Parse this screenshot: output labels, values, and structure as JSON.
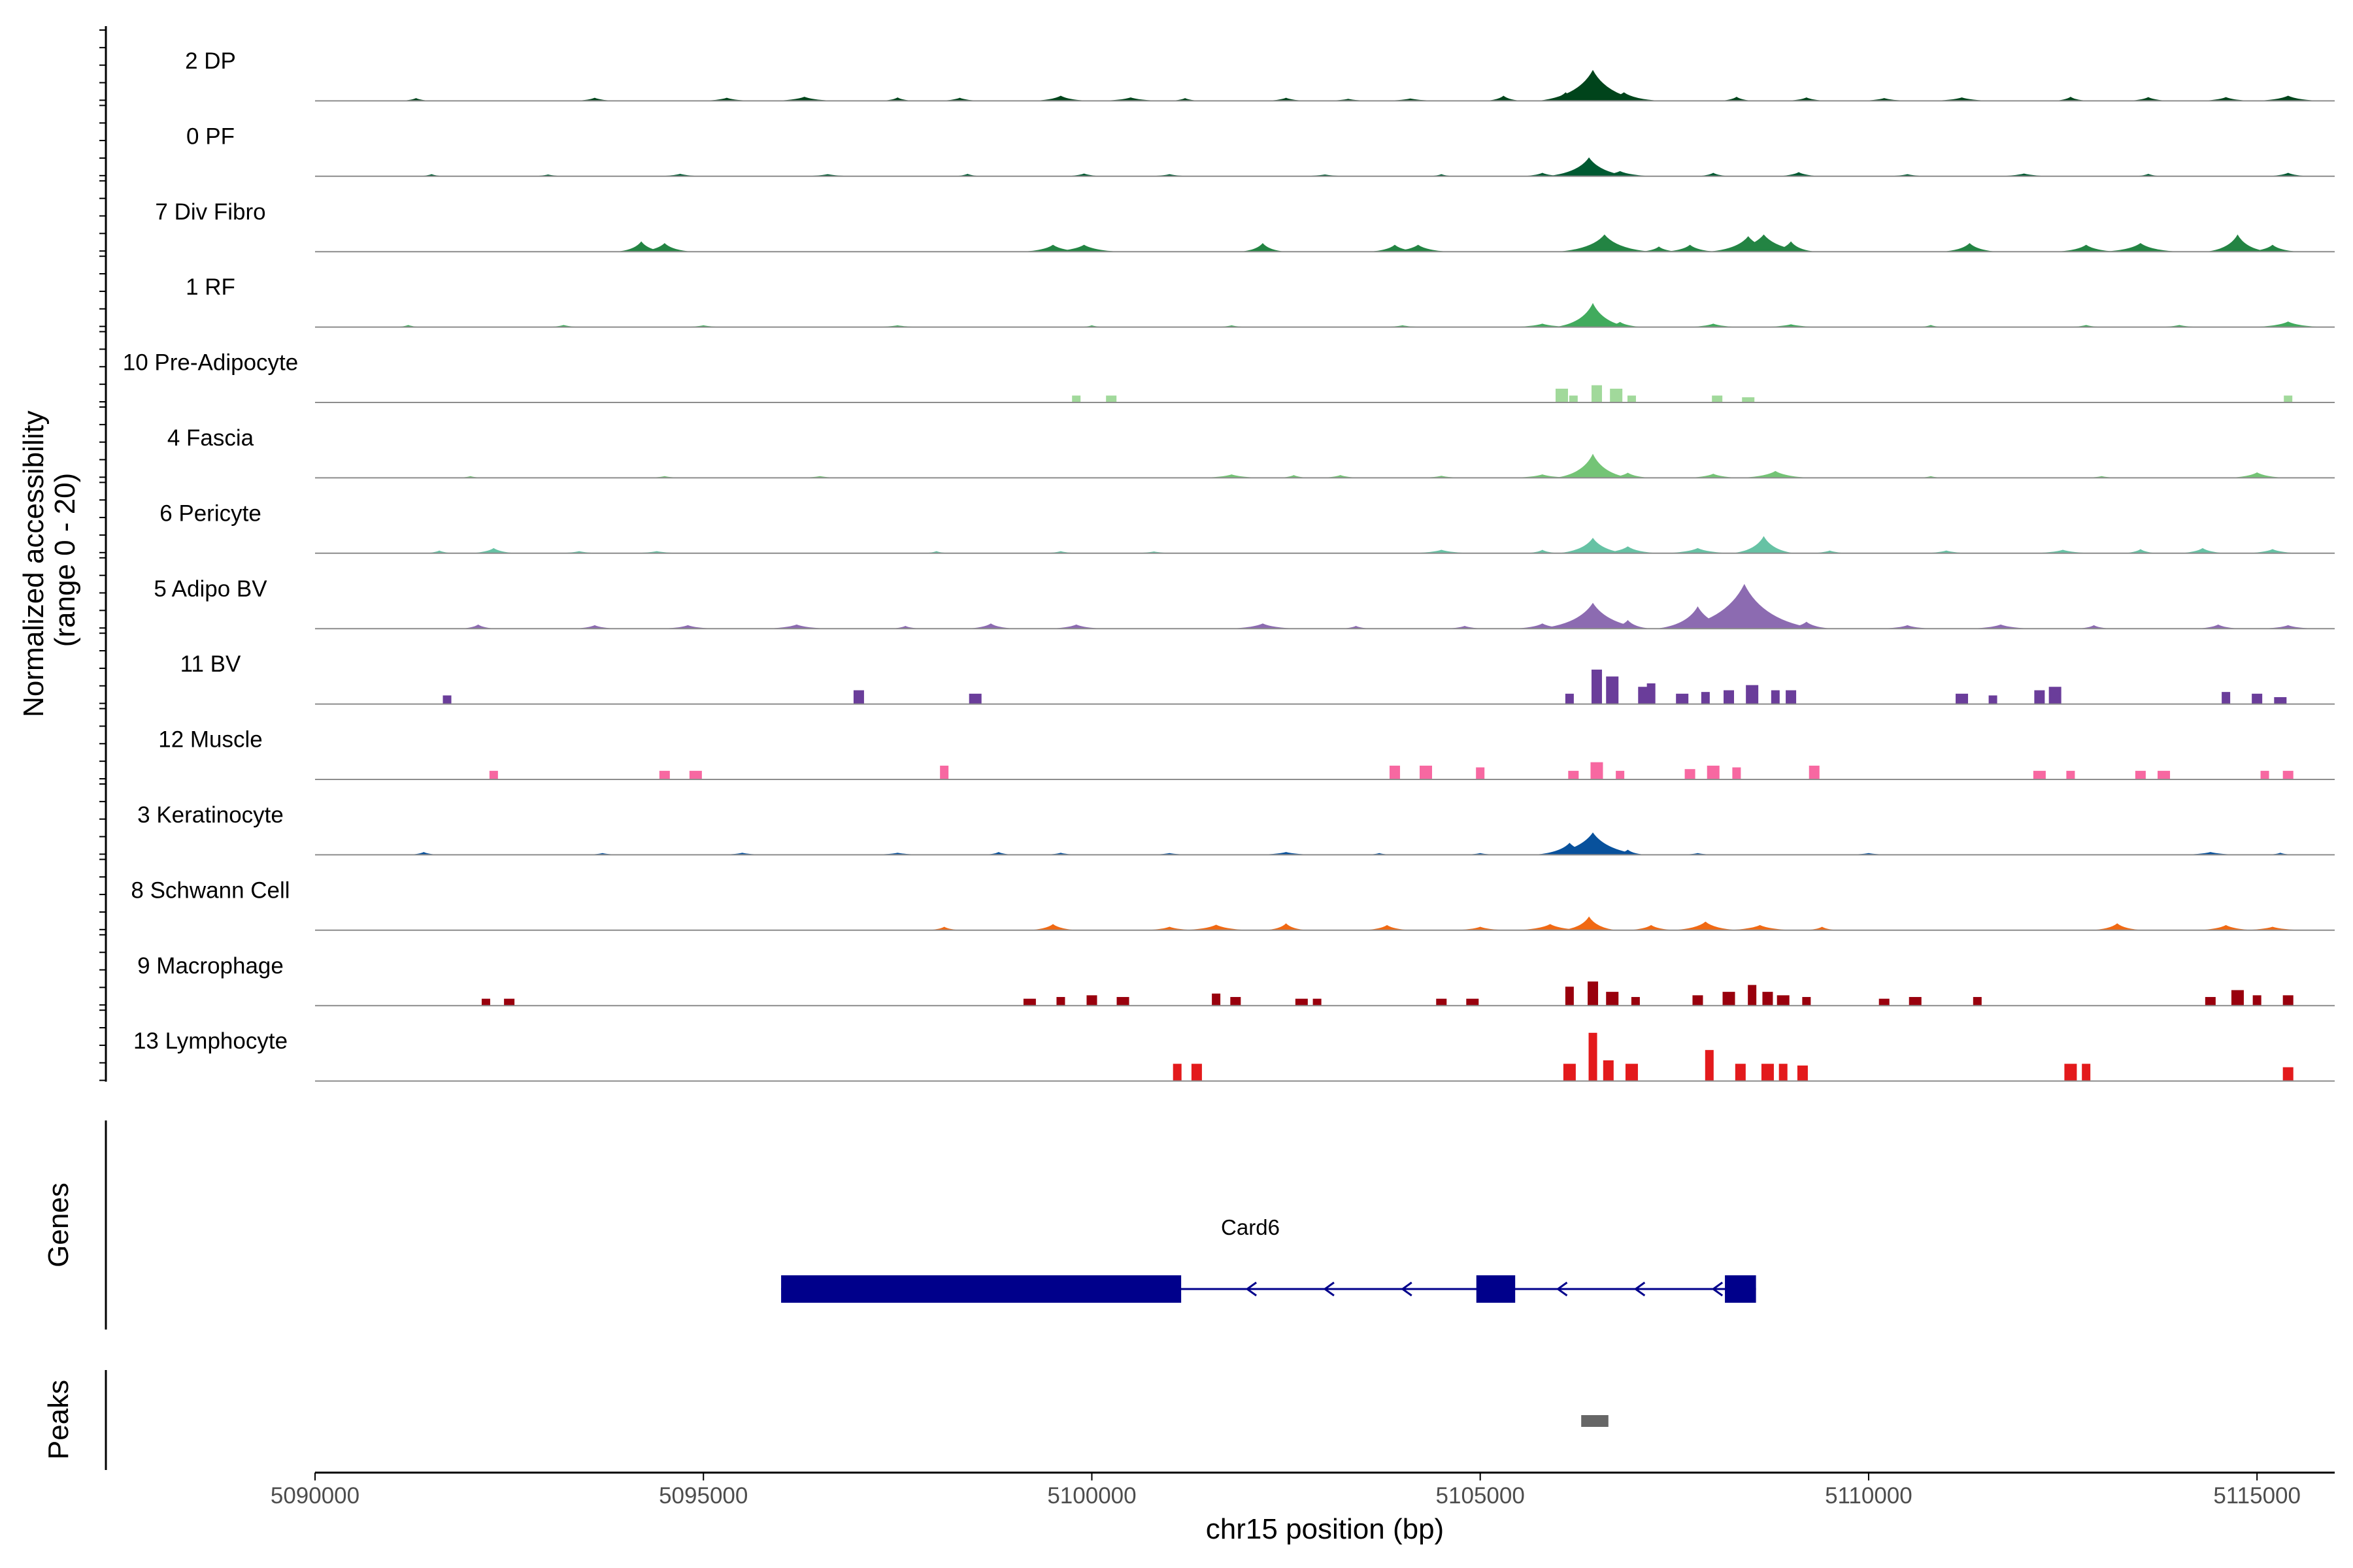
{
  "chart_data": {
    "type": "area",
    "genome_region": {
      "chromosome": "chr15",
      "start": 5090000,
      "end": 5116000
    },
    "y_axis": {
      "title_line1": "Normalized accessibility",
      "title_line2": "(range 0 - 20)",
      "ylim": [
        0,
        20
      ]
    },
    "x_axis": {
      "title": "chr15 position (bp)",
      "ticks": [
        5090000,
        5095000,
        5100000,
        5105000,
        5110000,
        5115000
      ],
      "tick_labels": [
        "5090000",
        "5095000",
        "5100000",
        "5105000",
        "5110000",
        "5115000"
      ]
    },
    "tracks": [
      {
        "name": "2 DP",
        "color": "#00441b",
        "style": "smooth",
        "peaks": [
          [
            5091300,
            0.8
          ],
          [
            5093600,
            0.9
          ],
          [
            5095300,
            0.9
          ],
          [
            5096300,
            1.2
          ],
          [
            5097500,
            1.0
          ],
          [
            5098300,
            0.9
          ],
          [
            5099600,
            1.5
          ],
          [
            5100500,
            1.0
          ],
          [
            5101200,
            0.8
          ],
          [
            5102500,
            0.9
          ],
          [
            5103300,
            0.6
          ],
          [
            5104100,
            0.7
          ],
          [
            5105300,
            1.5
          ],
          [
            5106100,
            2.5
          ],
          [
            5106450,
            9.0
          ],
          [
            5106850,
            2.5
          ],
          [
            5108300,
            1.2
          ],
          [
            5109200,
            1.0
          ],
          [
            5110200,
            0.8
          ],
          [
            5111200,
            1.0
          ],
          [
            5112600,
            1.2
          ],
          [
            5113600,
            1.1
          ],
          [
            5114600,
            1.1
          ],
          [
            5115400,
            1.5
          ]
        ]
      },
      {
        "name": "0 PF",
        "color": "#005a32",
        "style": "smooth",
        "peaks": [
          [
            5091500,
            0.6
          ],
          [
            5093000,
            0.5
          ],
          [
            5094700,
            0.7
          ],
          [
            5096600,
            0.6
          ],
          [
            5098400,
            0.7
          ],
          [
            5099900,
            0.8
          ],
          [
            5101000,
            0.6
          ],
          [
            5103000,
            0.5
          ],
          [
            5104500,
            0.6
          ],
          [
            5105800,
            1.0
          ],
          [
            5106400,
            5.5
          ],
          [
            5106800,
            1.5
          ],
          [
            5108000,
            1.0
          ],
          [
            5109100,
            1.2
          ],
          [
            5110500,
            0.6
          ],
          [
            5112000,
            0.8
          ],
          [
            5113600,
            0.7
          ],
          [
            5115400,
            1.0
          ]
        ]
      },
      {
        "name": "7 Div Fibro",
        "color": "#238443",
        "style": "smooth",
        "peaks": [
          [
            5094200,
            3.0
          ],
          [
            5094500,
            2.5
          ],
          [
            5099500,
            2.0
          ],
          [
            5099900,
            2.0
          ],
          [
            5102200,
            2.5
          ],
          [
            5103900,
            2.0
          ],
          [
            5104200,
            2.0
          ],
          [
            5106600,
            5.0
          ],
          [
            5107300,
            1.5
          ],
          [
            5107700,
            2.0
          ],
          [
            5108450,
            4.5
          ],
          [
            5108650,
            5.0
          ],
          [
            5109000,
            3.0
          ],
          [
            5111300,
            2.5
          ],
          [
            5112800,
            2.0
          ],
          [
            5113500,
            2.5
          ],
          [
            5114750,
            5.0
          ],
          [
            5115200,
            2.0
          ]
        ]
      },
      {
        "name": "1 RF",
        "color": "#41ab5d",
        "style": "smooth",
        "peaks": [
          [
            5091200,
            0.6
          ],
          [
            5093200,
            0.6
          ],
          [
            5095000,
            0.5
          ],
          [
            5097500,
            0.5
          ],
          [
            5100000,
            0.5
          ],
          [
            5101800,
            0.5
          ],
          [
            5104000,
            0.5
          ],
          [
            5105800,
            1.0
          ],
          [
            5106450,
            7.0
          ],
          [
            5106800,
            1.5
          ],
          [
            5108000,
            1.0
          ],
          [
            5109000,
            0.8
          ],
          [
            5110800,
            0.6
          ],
          [
            5112800,
            0.6
          ],
          [
            5114000,
            0.6
          ],
          [
            5115400,
            1.6
          ]
        ]
      },
      {
        "name": "10 Pre-Adipocyte",
        "color": "#a1d99b",
        "style": "block",
        "peaks": [
          [
            5099800,
            2.0
          ],
          [
            5100250,
            2.0
          ],
          [
            5106050,
            4.0
          ],
          [
            5106200,
            2.0
          ],
          [
            5106500,
            5.0
          ],
          [
            5106750,
            4.0
          ],
          [
            5106950,
            2.0
          ],
          [
            5108050,
            2.0
          ],
          [
            5108450,
            1.5
          ],
          [
            5115400,
            2.0
          ]
        ]
      },
      {
        "name": "4 Fascia",
        "color": "#74c476",
        "style": "smooth",
        "peaks": [
          [
            5092000,
            0.5
          ],
          [
            5094500,
            0.5
          ],
          [
            5096500,
            0.5
          ],
          [
            5101800,
            1.0
          ],
          [
            5102600,
            0.8
          ],
          [
            5103200,
            0.8
          ],
          [
            5104500,
            0.6
          ],
          [
            5105800,
            1.0
          ],
          [
            5106450,
            7.0
          ],
          [
            5106900,
            1.5
          ],
          [
            5108000,
            1.2
          ],
          [
            5108800,
            2.0
          ],
          [
            5110800,
            0.5
          ],
          [
            5113000,
            0.5
          ],
          [
            5115000,
            1.6
          ]
        ]
      },
      {
        "name": "6 Pericyte",
        "color": "#66c2a4",
        "style": "smooth",
        "peaks": [
          [
            5091600,
            0.8
          ],
          [
            5092300,
            1.5
          ],
          [
            5093400,
            0.6
          ],
          [
            5094400,
            0.6
          ],
          [
            5098000,
            0.6
          ],
          [
            5099600,
            0.6
          ],
          [
            5100800,
            0.5
          ],
          [
            5104500,
            1.0
          ],
          [
            5105800,
            1.0
          ],
          [
            5106450,
            4.5
          ],
          [
            5106900,
            2.0
          ],
          [
            5107800,
            1.5
          ],
          [
            5108650,
            5.0
          ],
          [
            5109500,
            0.8
          ],
          [
            5111000,
            0.8
          ],
          [
            5112500,
            1.0
          ],
          [
            5113500,
            1.2
          ],
          [
            5114300,
            1.5
          ],
          [
            5115200,
            1.2
          ]
        ]
      },
      {
        "name": "5 Adipo BV",
        "color": "#8c6bb1",
        "style": "smooth",
        "peaks": [
          [
            5092100,
            1.2
          ],
          [
            5093600,
            1.0
          ],
          [
            5094800,
            1.0
          ],
          [
            5096200,
            1.2
          ],
          [
            5097600,
            0.8
          ],
          [
            5098700,
            1.5
          ],
          [
            5099800,
            1.2
          ],
          [
            5102200,
            1.5
          ],
          [
            5103400,
            0.8
          ],
          [
            5104800,
            0.8
          ],
          [
            5105800,
            1.5
          ],
          [
            5106450,
            7.5
          ],
          [
            5106900,
            2.5
          ],
          [
            5107800,
            6.5
          ],
          [
            5108250,
            8.0
          ],
          [
            5108400,
            13.0
          ],
          [
            5108700,
            5.0
          ],
          [
            5109200,
            2.0
          ],
          [
            5110500,
            1.0
          ],
          [
            5111700,
            1.2
          ],
          [
            5112900,
            1.0
          ],
          [
            5114500,
            1.2
          ],
          [
            5115400,
            1.0
          ]
        ]
      },
      {
        "name": "11 BV",
        "color": "#6a3d9a",
        "style": "block",
        "peaks": [
          [
            5091700,
            2.5
          ],
          [
            5097000,
            4.0
          ],
          [
            5098500,
            3.0
          ],
          [
            5106150,
            3.0
          ],
          [
            5106500,
            10.0
          ],
          [
            5106700,
            8.0
          ],
          [
            5107200,
            6.0
          ],
          [
            5107100,
            5.0
          ],
          [
            5107600,
            3.0
          ],
          [
            5107900,
            3.5
          ],
          [
            5108200,
            4.0
          ],
          [
            5108500,
            5.5
          ],
          [
            5108800,
            4.0
          ],
          [
            5109000,
            4.0
          ],
          [
            5111200,
            3.0
          ],
          [
            5111600,
            2.5
          ],
          [
            5112200,
            4.0
          ],
          [
            5112400,
            5.0
          ],
          [
            5114600,
            3.5
          ],
          [
            5115000,
            3.0
          ],
          [
            5115300,
            2.0
          ]
        ]
      },
      {
        "name": "12 Muscle",
        "color": "#f768a1",
        "style": "block",
        "peaks": [
          [
            5092300,
            2.5
          ],
          [
            5094500,
            2.5
          ],
          [
            5094900,
            2.5
          ],
          [
            5098100,
            4.0
          ],
          [
            5103900,
            4.0
          ],
          [
            5104300,
            4.0
          ],
          [
            5105000,
            3.5
          ],
          [
            5106200,
            2.5
          ],
          [
            5106500,
            5.0
          ],
          [
            5106800,
            2.5
          ],
          [
            5107700,
            3.0
          ],
          [
            5108000,
            4.0
          ],
          [
            5108300,
            3.5
          ],
          [
            5109300,
            4.0
          ],
          [
            5112200,
            2.5
          ],
          [
            5112600,
            2.5
          ],
          [
            5113500,
            2.5
          ],
          [
            5113800,
            2.5
          ],
          [
            5115100,
            2.5
          ],
          [
            5115400,
            2.5
          ]
        ]
      },
      {
        "name": "3 Keratinocyte",
        "color": "#08519c",
        "style": "smooth",
        "peaks": [
          [
            5091400,
            0.8
          ],
          [
            5093700,
            0.5
          ],
          [
            5095500,
            0.6
          ],
          [
            5097500,
            0.6
          ],
          [
            5098800,
            0.8
          ],
          [
            5099600,
            0.6
          ],
          [
            5101000,
            0.5
          ],
          [
            5102500,
            0.8
          ],
          [
            5103700,
            0.5
          ],
          [
            5105000,
            0.5
          ],
          [
            5106150,
            3.5
          ],
          [
            5106450,
            6.5
          ],
          [
            5106900,
            1.5
          ],
          [
            5107800,
            0.5
          ],
          [
            5110000,
            0.5
          ],
          [
            5114400,
            0.8
          ],
          [
            5115300,
            0.6
          ]
        ]
      },
      {
        "name": "8 Schwann Cell",
        "color": "#f16913",
        "style": "smooth",
        "peaks": [
          [
            5098100,
            1.0
          ],
          [
            5099500,
            1.8
          ],
          [
            5101000,
            1.0
          ],
          [
            5101600,
            1.6
          ],
          [
            5102500,
            2.0
          ],
          [
            5103800,
            1.5
          ],
          [
            5105000,
            1.0
          ],
          [
            5105900,
            1.8
          ],
          [
            5106400,
            4.0
          ],
          [
            5107200,
            1.5
          ],
          [
            5107900,
            2.5
          ],
          [
            5108600,
            1.5
          ],
          [
            5109400,
            1.0
          ],
          [
            5113200,
            2.0
          ],
          [
            5114600,
            1.5
          ],
          [
            5115200,
            1.0
          ]
        ]
      },
      {
        "name": "9 Macrophage",
        "color": "#99000d",
        "style": "block",
        "peaks": [
          [
            5092200,
            2.0
          ],
          [
            5092500,
            2.0
          ],
          [
            5099200,
            2.0
          ],
          [
            5099600,
            2.5
          ],
          [
            5100000,
            3.0
          ],
          [
            5100400,
            2.5
          ],
          [
            5101600,
            3.5
          ],
          [
            5101850,
            2.5
          ],
          [
            5102700,
            2.0
          ],
          [
            5102900,
            2.0
          ],
          [
            5104500,
            2.0
          ],
          [
            5104900,
            2.0
          ],
          [
            5106150,
            5.5
          ],
          [
            5106450,
            7.0
          ],
          [
            5106700,
            4.0
          ],
          [
            5107000,
            2.5
          ],
          [
            5107800,
            3.0
          ],
          [
            5108200,
            4.0
          ],
          [
            5108500,
            6.0
          ],
          [
            5108700,
            4.0
          ],
          [
            5108900,
            3.0
          ],
          [
            5109200,
            2.5
          ],
          [
            5110200,
            2.0
          ],
          [
            5110600,
            2.5
          ],
          [
            5111400,
            2.5
          ],
          [
            5114400,
            2.5
          ],
          [
            5114750,
            4.5
          ],
          [
            5115000,
            3.0
          ],
          [
            5115400,
            3.0
          ]
        ]
      },
      {
        "name": "13 Lymphocyte",
        "color": "#e31a1c",
        "style": "block",
        "peaks": [
          [
            5101100,
            5.0
          ],
          [
            5101350,
            5.0
          ],
          [
            5106150,
            5.0
          ],
          [
            5106450,
            14.0
          ],
          [
            5106650,
            6.0
          ],
          [
            5106950,
            5.0
          ],
          [
            5107950,
            9.0
          ],
          [
            5108350,
            5.0
          ],
          [
            5108700,
            5.0
          ],
          [
            5108900,
            5.0
          ],
          [
            5109150,
            4.5
          ],
          [
            5112600,
            5.0
          ],
          [
            5112800,
            5.0
          ],
          [
            5115400,
            4.0
          ]
        ]
      }
    ],
    "gene": {
      "track_label": "Genes",
      "name": "Card6",
      "color": "#00008b",
      "strand": "-",
      "start": 5096000,
      "end": 5108550,
      "exons": [
        [
          5096000,
          5101150
        ],
        [
          5104950,
          5105450
        ],
        [
          5108150,
          5108550
        ]
      ],
      "arrow_positions": [
        5102050,
        5103050,
        5104050,
        5106050,
        5107050,
        5108050
      ]
    },
    "peaks_track": {
      "track_label": "Peaks",
      "color": "#666666",
      "regions": [
        [
          5106300,
          5106650
        ]
      ]
    }
  }
}
